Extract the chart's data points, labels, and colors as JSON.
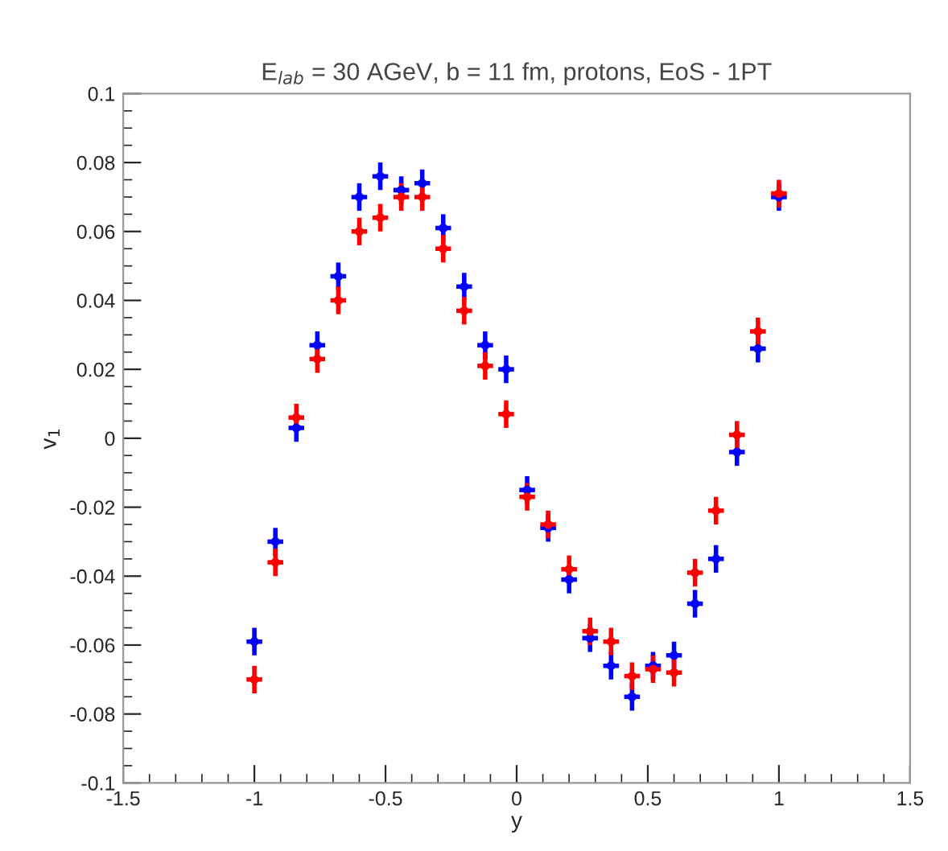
{
  "chart_data": {
    "type": "scatter",
    "title": "E$_{lab}$ = 30 AGeV, b = 11 fm, protons, EoS - 1PT",
    "xlabel": "y",
    "ylabel": "v$_{1}$",
    "x": [
      -1,
      -0.92,
      -0.84,
      -0.76,
      -0.68,
      -0.6,
      -0.52,
      -0.44,
      -0.36,
      -0.28,
      -0.2,
      -0.12,
      -0.04,
      0.04,
      0.12,
      0.2,
      0.28,
      0.36,
      0.44,
      0.52,
      0.6,
      0.68,
      0.76,
      0.84,
      0.92,
      1.0
    ],
    "series": [
      {
        "color": "#0000ff",
        "values": [
          -0.059,
          -0.03,
          0.003,
          0.027,
          0.047,
          0.07,
          0.076,
          0.072,
          0.074,
          0.061,
          0.044,
          0.027,
          0.02,
          -0.015,
          -0.026,
          -0.041,
          -0.058,
          -0.066,
          -0.075,
          -0.066,
          -0.063,
          -0.048,
          -0.035,
          -0.004,
          0.026,
          0.07
        ],
        "errors": [
          0.004,
          0.004,
          0.004,
          0.004,
          0.004,
          0.004,
          0.004,
          0.004,
          0.004,
          0.004,
          0.004,
          0.004,
          0.004,
          0.004,
          0.004,
          0.004,
          0.004,
          0.004,
          0.004,
          0.004,
          0.004,
          0.004,
          0.004,
          0.004,
          0.004,
          0.004
        ],
        "xerrors": [
          0.03,
          0.03,
          0.03,
          0.03,
          0.03,
          0.03,
          0.03,
          0.03,
          0.03,
          0.03,
          0.03,
          0.03,
          0.03,
          0.03,
          0.03,
          0.03,
          0.03,
          0.03,
          0.03,
          0.03,
          0.03,
          0.03,
          0.03,
          0.03,
          0.03,
          0.03
        ]
      },
      {
        "color": "#ff0000",
        "values": [
          -0.07,
          -0.036,
          0.006,
          0.023,
          0.04,
          0.06,
          0.064,
          0.07,
          0.07,
          0.055,
          0.037,
          0.021,
          0.007,
          -0.017,
          -0.025,
          -0.038,
          -0.056,
          -0.059,
          -0.069,
          -0.067,
          -0.068,
          -0.039,
          -0.021,
          0.001,
          0.031,
          0.071
        ],
        "errors": [
          0.004,
          0.004,
          0.004,
          0.004,
          0.004,
          0.004,
          0.004,
          0.004,
          0.004,
          0.004,
          0.004,
          0.004,
          0.004,
          0.004,
          0.004,
          0.004,
          0.004,
          0.004,
          0.004,
          0.004,
          0.004,
          0.004,
          0.004,
          0.004,
          0.004,
          0.004
        ],
        "xerrors": [
          0.03,
          0.03,
          0.03,
          0.03,
          0.03,
          0.03,
          0.03,
          0.03,
          0.03,
          0.03,
          0.03,
          0.03,
          0.03,
          0.03,
          0.03,
          0.03,
          0.03,
          0.03,
          0.03,
          0.03,
          0.03,
          0.03,
          0.03,
          0.03,
          0.03,
          0.03
        ]
      }
    ],
    "grid": false,
    "xlim": [
      -1.5,
      1.5
    ],
    "xticks": [
      -1.5,
      -1,
      -0.5,
      0,
      0.5,
      1,
      1.5
    ],
    "ylim": [
      -0.1,
      0.1
    ],
    "yticks": [
      -0.1,
      -0.08,
      -0.06,
      -0.04,
      -0.02,
      0,
      0.02,
      0.04,
      0.06,
      0.08,
      0.1
    ]
  }
}
